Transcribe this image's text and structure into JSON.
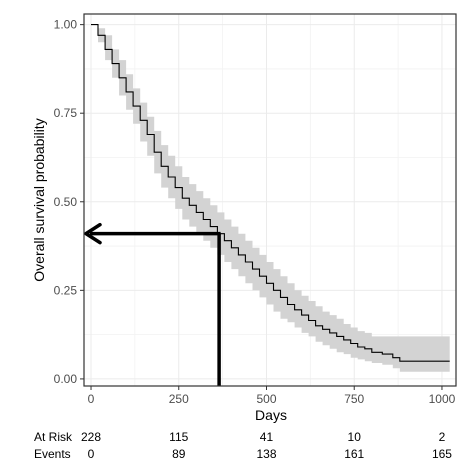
{
  "chart_data": {
    "type": "line",
    "title": "",
    "xlabel": "Days",
    "ylabel": "Overall survival probability",
    "xlim": [
      -20,
      1040
    ],
    "ylim": [
      -0.02,
      1.03
    ],
    "x_ticks": [
      0,
      250,
      500,
      750,
      1000
    ],
    "x_tick_labels": [
      "0",
      "250",
      "500",
      "750",
      "1000"
    ],
    "y_ticks": [
      0.0,
      0.25,
      0.5,
      0.75,
      1.0
    ],
    "y_tick_labels": [
      "0.00",
      "0.25",
      "0.50",
      "0.75",
      "1.00"
    ],
    "grid": true,
    "series": [
      {
        "name": "",
        "color": "#000000",
        "band_color": "#d3d3d3",
        "x": [
          0,
          20,
          40,
          60,
          80,
          100,
          120,
          140,
          160,
          180,
          200,
          220,
          240,
          260,
          280,
          300,
          320,
          340,
          360,
          380,
          400,
          420,
          440,
          460,
          480,
          500,
          520,
          540,
          560,
          580,
          600,
          620,
          640,
          660,
          680,
          700,
          720,
          740,
          760,
          780,
          800,
          830,
          860,
          880,
          1000,
          1022
        ],
        "y": [
          1.0,
          0.97,
          0.93,
          0.89,
          0.85,
          0.81,
          0.77,
          0.73,
          0.69,
          0.64,
          0.6,
          0.57,
          0.54,
          0.51,
          0.49,
          0.47,
          0.45,
          0.43,
          0.41,
          0.39,
          0.37,
          0.35,
          0.33,
          0.31,
          0.29,
          0.27,
          0.25,
          0.23,
          0.21,
          0.195,
          0.18,
          0.165,
          0.15,
          0.14,
          0.13,
          0.12,
          0.11,
          0.1,
          0.09,
          0.085,
          0.075,
          0.07,
          0.06,
          0.05,
          0.05,
          0.05
        ],
        "lower": [
          1.0,
          0.95,
          0.9,
          0.85,
          0.8,
          0.76,
          0.72,
          0.67,
          0.63,
          0.58,
          0.54,
          0.51,
          0.48,
          0.45,
          0.43,
          0.41,
          0.39,
          0.37,
          0.35,
          0.33,
          0.31,
          0.29,
          0.27,
          0.25,
          0.23,
          0.21,
          0.19,
          0.17,
          0.16,
          0.145,
          0.13,
          0.12,
          0.105,
          0.095,
          0.085,
          0.075,
          0.07,
          0.06,
          0.055,
          0.05,
          0.045,
          0.04,
          0.03,
          0.02,
          0.02,
          0.02
        ],
        "upper": [
          1.0,
          0.99,
          0.97,
          0.93,
          0.9,
          0.86,
          0.82,
          0.78,
          0.74,
          0.7,
          0.66,
          0.63,
          0.6,
          0.57,
          0.55,
          0.53,
          0.51,
          0.49,
          0.47,
          0.45,
          0.43,
          0.41,
          0.39,
          0.37,
          0.35,
          0.33,
          0.31,
          0.29,
          0.27,
          0.25,
          0.235,
          0.22,
          0.205,
          0.19,
          0.18,
          0.17,
          0.155,
          0.145,
          0.135,
          0.13,
          0.12,
          0.12,
          0.12,
          0.12,
          0.12,
          0.12
        ]
      }
    ],
    "annotation": {
      "median_x": 365,
      "median_y": 0.41,
      "color": "#000000"
    },
    "risk_table": {
      "label_at_risk": "At Risk",
      "label_events": "Events",
      "x": [
        0,
        250,
        500,
        750,
        1000
      ],
      "at_risk": [
        "228",
        "115",
        "41",
        "10",
        "2"
      ],
      "events": [
        "0",
        "89",
        "138",
        "161",
        "165"
      ]
    }
  }
}
